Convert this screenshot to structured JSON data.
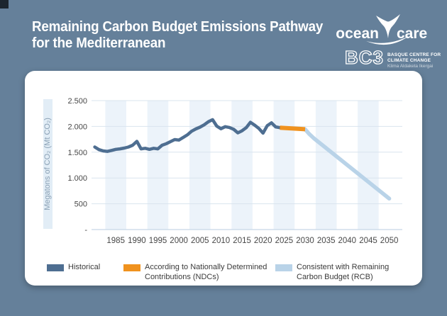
{
  "colors": {
    "background": "#65809a",
    "card": "#ffffff",
    "corner_square": "#1c252e",
    "title_text": "#ffffff",
    "historical": "#4e6e91",
    "ndc": "#f0921e",
    "rcb": "#b9d3e8",
    "stripe": "#ecf3fa",
    "gridline": "#d9e4ee",
    "axis_line": "#c6d8e6",
    "axis_text": "#474747",
    "ylabel_strip": "#e2edf6",
    "ylabel_text": "#8ba1b5",
    "legend_text": "#3a3a3a"
  },
  "header": {
    "title_line1": "Remaining Carbon Budget Emissions Pathway",
    "title_line2": "for the Mediterranean",
    "oceancare": {
      "word1": "ocean",
      "word2": "care"
    },
    "bc3": {
      "wordmark": "BC3",
      "line1": "BASQUE CENTRE FOR",
      "line2": "CLIMATE CHANGE",
      "line3": "Klima Aldaketa Ikergai"
    }
  },
  "chart_data": {
    "type": "line",
    "ylabel": "Megatons of CO₂ (Mt CO₂)",
    "x_range": [
      1979.4,
      2053.1
    ],
    "y_range": [
      0,
      2500
    ],
    "x_ticks": [
      1985,
      1990,
      1995,
      2000,
      2005,
      2010,
      2015,
      2020,
      2025,
      2030,
      2035,
      2040,
      2045,
      2050
    ],
    "y_ticks": [
      {
        "value": 2500,
        "label": "2.500"
      },
      {
        "value": 2000,
        "label": "2.000"
      },
      {
        "value": 1500,
        "label": "1.500"
      },
      {
        "value": 1000,
        "label": "1.000"
      },
      {
        "value": 500,
        "label": "500"
      },
      {
        "value": 0,
        "label": "-"
      }
    ],
    "stripes_on_ticks": [
      1985,
      1995,
      2005,
      2015,
      2025,
      2035,
      2045
    ],
    "series": [
      {
        "name": "Historical",
        "color_key": "historical",
        "points": [
          [
            1980,
            1600
          ],
          [
            1981,
            1550
          ],
          [
            1982,
            1525
          ],
          [
            1983,
            1515
          ],
          [
            1984,
            1535
          ],
          [
            1985,
            1555
          ],
          [
            1986,
            1565
          ],
          [
            1987,
            1580
          ],
          [
            1988,
            1600
          ],
          [
            1989,
            1635
          ],
          [
            1990,
            1710
          ],
          [
            1991,
            1565
          ],
          [
            1992,
            1575
          ],
          [
            1993,
            1555
          ],
          [
            1994,
            1575
          ],
          [
            1995,
            1565
          ],
          [
            1996,
            1635
          ],
          [
            1997,
            1665
          ],
          [
            1998,
            1705
          ],
          [
            1999,
            1745
          ],
          [
            2000,
            1735
          ],
          [
            2001,
            1785
          ],
          [
            2002,
            1835
          ],
          [
            2003,
            1905
          ],
          [
            2004,
            1950
          ],
          [
            2005,
            1985
          ],
          [
            2006,
            2030
          ],
          [
            2007,
            2090
          ],
          [
            2008,
            2130
          ],
          [
            2009,
            2005
          ],
          [
            2010,
            1955
          ],
          [
            2011,
            1995
          ],
          [
            2012,
            1980
          ],
          [
            2013,
            1945
          ],
          [
            2014,
            1875
          ],
          [
            2015,
            1915
          ],
          [
            2016,
            1975
          ],
          [
            2017,
            2080
          ],
          [
            2018,
            2025
          ],
          [
            2019,
            1960
          ],
          [
            2020,
            1870
          ],
          [
            2021,
            2015
          ],
          [
            2022,
            2070
          ],
          [
            2023,
            1990
          ],
          [
            2024,
            1975
          ]
        ]
      },
      {
        "name": "According to Nationally Determined Contributions (NDCs)",
        "color_key": "ndc",
        "points": [
          [
            2024,
            1975
          ],
          [
            2030,
            1945
          ]
        ]
      },
      {
        "name": "Consistent with Remaining Carbon Budget (RCB)",
        "color_key": "rcb",
        "points": [
          [
            2030,
            1945
          ],
          [
            2031,
            1850
          ],
          [
            2032,
            1775
          ],
          [
            2050,
            600
          ]
        ]
      }
    ],
    "legend": [
      {
        "color_key": "historical",
        "label_lines": [
          "Historical"
        ]
      },
      {
        "color_key": "ndc",
        "label_lines": [
          "According to Nationally Determined",
          "Contributions (NDCs)"
        ]
      },
      {
        "color_key": "rcb",
        "label_lines": [
          "Consistent with Remaining",
          "Carbon Budget (RCB)"
        ]
      }
    ]
  }
}
